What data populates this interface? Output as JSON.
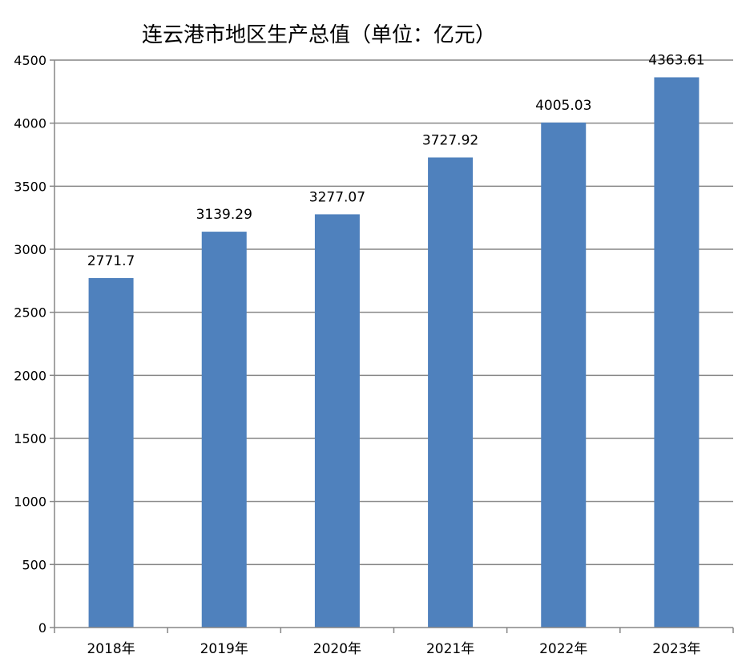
{
  "chart_data": {
    "type": "bar",
    "title": "连云港市地区生产总值（单位：亿元）",
    "categories": [
      "2018年",
      "2019年",
      "2020年",
      "2021年",
      "2022年",
      "2023年"
    ],
    "values": [
      2771.7,
      3139.29,
      3277.07,
      3727.92,
      4005.03,
      4363.61
    ],
    "value_labels": [
      "2771.7",
      "3139.29",
      "3277.07",
      "3727.92",
      "4005.03",
      "4363.61"
    ],
    "xlabel": "",
    "ylabel": "",
    "ylim": [
      0,
      4500
    ],
    "y_ticks": [
      "0",
      "500",
      "1000",
      "1500",
      "2000",
      "2500",
      "3000",
      "3500",
      "4000",
      "4500"
    ],
    "grid": true,
    "legend": "none",
    "bar_color": "#4F81BD",
    "grid_color": "#868686"
  }
}
